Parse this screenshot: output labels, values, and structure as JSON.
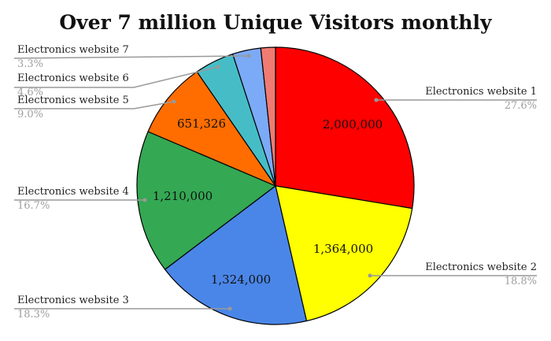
{
  "chart_data": {
    "type": "pie",
    "title": "Over 7 million Unique Visitors monthly",
    "slices": [
      {
        "label": "Electronics website 1",
        "value": 2000000,
        "value_label": "2,000,000",
        "percent": "27.6%",
        "color": "#ff0000"
      },
      {
        "label": "Electronics website 2",
        "value": 1364000,
        "value_label": "1,364,000",
        "percent": "18.8%",
        "color": "#ffff00"
      },
      {
        "label": "Electronics website 3",
        "value": 1324000,
        "value_label": "1,324,000",
        "percent": "18.3%",
        "color": "#4a86e8"
      },
      {
        "label": "Electronics website 4",
        "value": 1210000,
        "value_label": "1,210,000",
        "percent": "16.7%",
        "color": "#34a853"
      },
      {
        "label": "Electronics website 5",
        "value": 651326,
        "value_label": "651,326",
        "percent": "9.0%",
        "color": "#ff6d01"
      },
      {
        "label": "Electronics website 6",
        "value": null,
        "value_label": "",
        "percent": "4.6%",
        "color": "#46bdc6"
      },
      {
        "label": "Electronics website 7",
        "value": null,
        "value_label": "",
        "percent": "3.3%",
        "color": "#7baaf7"
      },
      {
        "label": "",
        "value": null,
        "value_label": "",
        "percent": "",
        "color": "#f07b72"
      }
    ],
    "legend_position": "callouts"
  },
  "labels": {
    "w1": {
      "name": "Electronics website 1",
      "pct": "27.6%"
    },
    "w2": {
      "name": "Electronics website 2",
      "pct": "18.8%"
    },
    "w3": {
      "name": "Electronics website 3",
      "pct": "18.3%"
    },
    "w4": {
      "name": "Electronics website 4",
      "pct": "16.7%"
    },
    "w5": {
      "name": "Electronics website 5",
      "pct": "9.0%"
    },
    "w6": {
      "name": "Electronics website 6",
      "pct": "4.6%"
    },
    "w7": {
      "name": "Electronics website 7",
      "pct": "3.3%"
    }
  },
  "values": {
    "w1": "2,000,000",
    "w2": "1,364,000",
    "w3": "1,324,000",
    "w4": "1,210,000",
    "w5": "651,326"
  }
}
